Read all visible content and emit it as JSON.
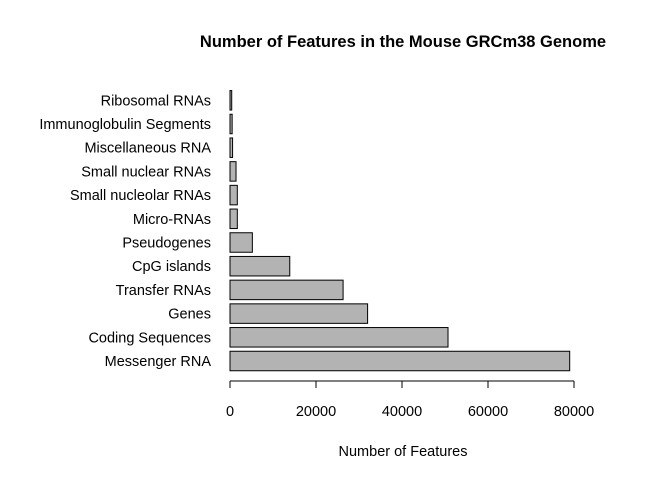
{
  "chart_data": {
    "type": "bar",
    "orientation": "horizontal",
    "title": "Number of Features in the Mouse GRCm38 Genome",
    "xlabel": "Number of Features",
    "ylabel": "",
    "categories": [
      "Messenger RNA",
      "Coding Sequences",
      "Genes",
      "Transfer RNAs",
      "CpG islands",
      "Pseudogenes",
      "Micro-RNAs",
      "Small nucleolar RNAs",
      "Small nuclear RNAs",
      "Miscellaneous RNA",
      "Immunoglobulin Segments",
      "Ribosomal RNAs"
    ],
    "values": [
      79000,
      50700,
      32000,
      26300,
      13900,
      5200,
      1700,
      1700,
      1400,
      600,
      500,
      400
    ],
    "xlim": [
      0,
      80000
    ],
    "xticks": [
      0,
      20000,
      40000,
      60000,
      80000
    ],
    "bar_color": "#b3b3b3",
    "grid": false,
    "legend": "none"
  }
}
